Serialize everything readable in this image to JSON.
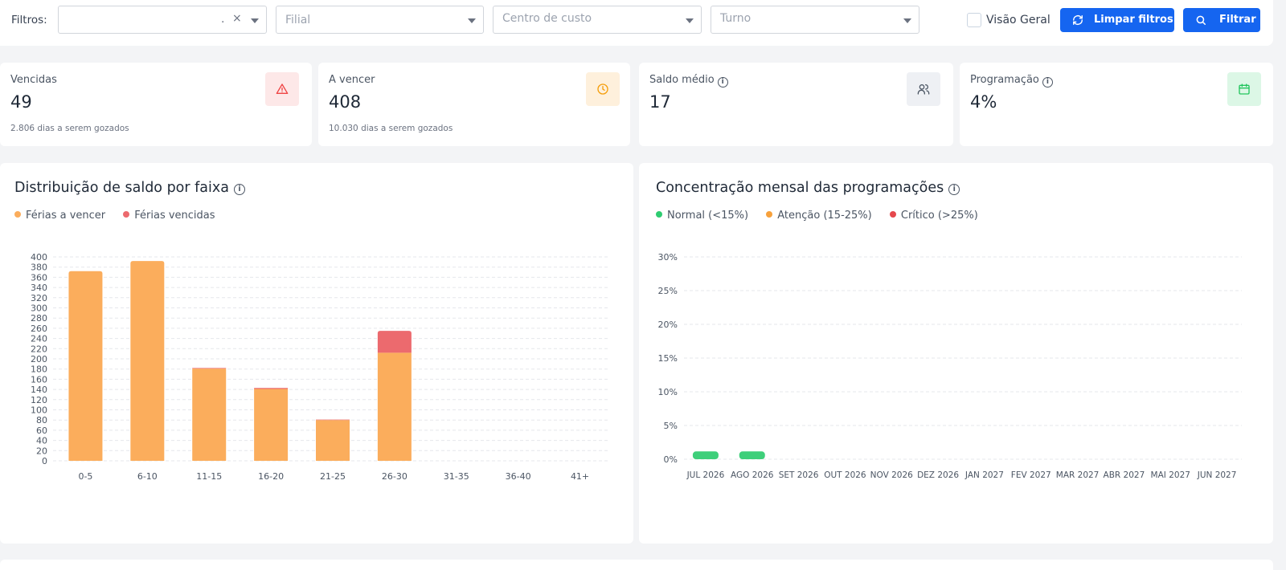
{
  "filters": {
    "label": "Filtros:",
    "select1": {
      "value_dot": ".",
      "clear": "×"
    },
    "filial": {
      "placeholder": "Filial"
    },
    "centro_custo": {
      "placeholder": "Centro de custo"
    },
    "turno": {
      "placeholder": "Turno"
    },
    "visao_geral_label": "Visão Geral",
    "limpar_label": "Limpar filtros",
    "filtrar_label": "Filtrar"
  },
  "kpis": [
    {
      "label": "Vencidas",
      "value": "49",
      "sub": "2.806 dias a serem gozados",
      "icon": "alert-triangle-icon",
      "icon_color": "#ef4444",
      "icon_bg": "#fde8e8"
    },
    {
      "label": "A vencer",
      "value": "408",
      "sub": "10.030 dias a serem gozados",
      "icon": "clock-icon",
      "icon_color": "#f59e0b",
      "icon_bg": "#fef0dc"
    },
    {
      "label": "Saldo médio",
      "value": "17",
      "sub": "",
      "icon": "users-icon",
      "icon_color": "#4b5563",
      "icon_bg": "#eef0f4"
    },
    {
      "label": "Programação",
      "value": "4%",
      "sub": "",
      "icon": "calendar-icon",
      "icon_color": "#22c55e",
      "icon_bg": "#dcf7e6"
    }
  ],
  "panels": {
    "distribuicao": {
      "title": "Distribuição de saldo por faixa",
      "legend": [
        {
          "label": "Férias a vencer",
          "color": "#fbad5c"
        },
        {
          "label": "Férias vencidas",
          "color": "#ec6a6e"
        }
      ]
    },
    "concentracao": {
      "title": "Concentração mensal das programações",
      "legend": [
        {
          "label": "Normal (<15%)",
          "color": "#2ecc71"
        },
        {
          "label": "Atenção (15-25%)",
          "color": "#f7a13c"
        },
        {
          "label": "Crítico (>25%)",
          "color": "#e5484d"
        }
      ]
    }
  },
  "chart_data": [
    {
      "type": "bar",
      "stacked": true,
      "title": "Distribuição de saldo por faixa",
      "categories": [
        "0-5",
        "6-10",
        "11-15",
        "16-20",
        "21-25",
        "26-30",
        "31-35",
        "36-40",
        "41+"
      ],
      "series": [
        {
          "name": "Férias a vencer",
          "color": "#fbad5c",
          "values": [
            372,
            392,
            181,
            141,
            80,
            212,
            0,
            0,
            0
          ]
        },
        {
          "name": "Férias vencidas",
          "color": "#ec6a6e",
          "values": [
            0,
            0,
            1,
            2,
            1,
            43,
            0,
            0,
            0
          ]
        }
      ],
      "ylim": [
        0,
        400
      ],
      "yticks": [
        0,
        20,
        40,
        60,
        80,
        100,
        120,
        140,
        160,
        180,
        200,
        220,
        240,
        260,
        280,
        300,
        320,
        340,
        360,
        380,
        400
      ],
      "grid": true
    },
    {
      "type": "bar",
      "title": "Concentração mensal das programações",
      "categories": [
        "JUL 2026",
        "AGO 2026",
        "SET 2026",
        "OUT 2026",
        "NOV 2026",
        "DEZ 2026",
        "JAN 2027",
        "FEV 2027",
        "MAR 2027",
        "ABR 2027",
        "MAI 2027",
        "JUN 2027"
      ],
      "values": [
        0.8,
        0.8,
        0,
        0,
        0,
        0,
        0,
        0,
        0,
        0,
        0,
        0
      ],
      "bar_color": "#3ecf7a",
      "ylim": [
        0,
        30
      ],
      "yticks": [
        "0%",
        "5%",
        "10%",
        "15%",
        "20%",
        "25%",
        "30%"
      ],
      "ytick_values": [
        0,
        5,
        10,
        15,
        20,
        25,
        30
      ],
      "grid": true
    }
  ]
}
